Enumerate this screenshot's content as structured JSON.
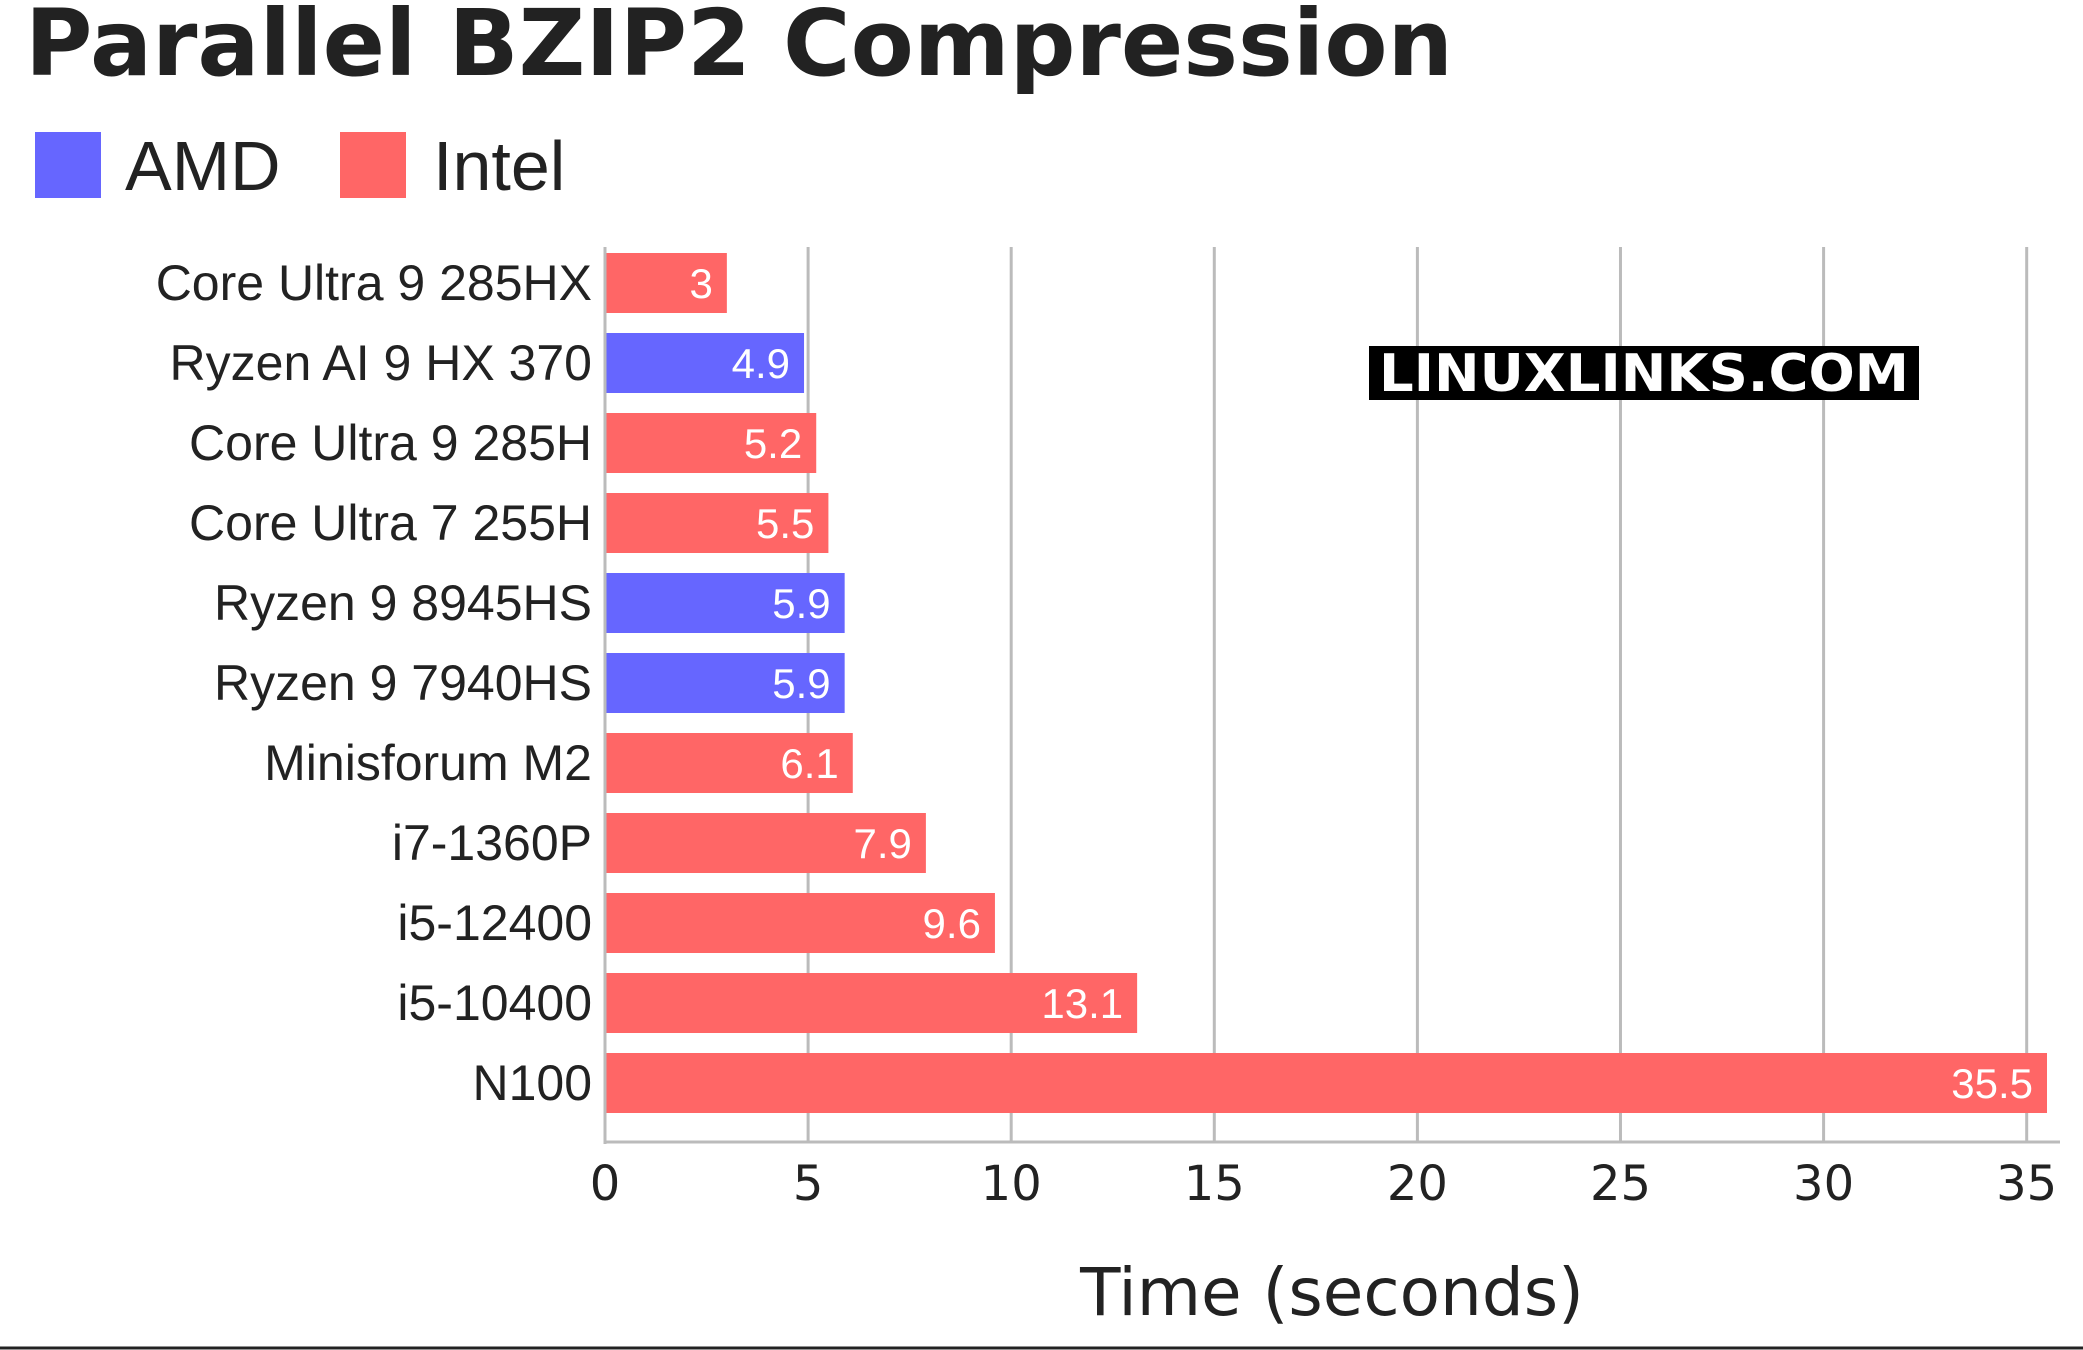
{
  "chart_data": {
    "type": "bar",
    "orientation": "horizontal",
    "title": "Parallel BZIP2 Compression",
    "xlabel": "Time (seconds)",
    "ylabel": "",
    "xlim": [
      0,
      35.5
    ],
    "xticks": [
      0,
      5,
      10,
      15,
      20,
      25,
      30,
      35
    ],
    "grid": true,
    "legend": {
      "placement": "top-left",
      "entries": [
        {
          "label": "AMD",
          "color": "#6666ff"
        },
        {
          "label": "Intel",
          "color": "#ff6666"
        }
      ]
    },
    "categories": [
      "Core Ultra 9 285HX",
      "Ryzen AI 9 HX 370",
      "Core Ultra 9 285H",
      "Core Ultra 7 255H",
      "Ryzen 9 8945HS",
      "Ryzen 9 7940HS",
      "Minisforum M2",
      "i7-1360P",
      "i5-12400",
      "i5-10400",
      "N100"
    ],
    "values": [
      3,
      4.9,
      5.2,
      5.5,
      5.9,
      5.9,
      6.1,
      7.9,
      9.6,
      13.1,
      35.5
    ],
    "value_labels": [
      "3",
      "4.9",
      "5.2",
      "5.5",
      "5.9",
      "5.9",
      "6.1",
      "7.9",
      "9.6",
      "13.1",
      "35.5"
    ],
    "vendor": [
      "Intel",
      "AMD",
      "Intel",
      "Intel",
      "AMD",
      "AMD",
      "Intel",
      "Intel",
      "Intel",
      "Intel",
      "Intel"
    ]
  },
  "watermark": "LINUXLINKS.COM",
  "colors": {
    "amd": "#6666ff",
    "intel": "#ff6666",
    "grid": "#bbbbbb",
    "text": "#222222"
  }
}
